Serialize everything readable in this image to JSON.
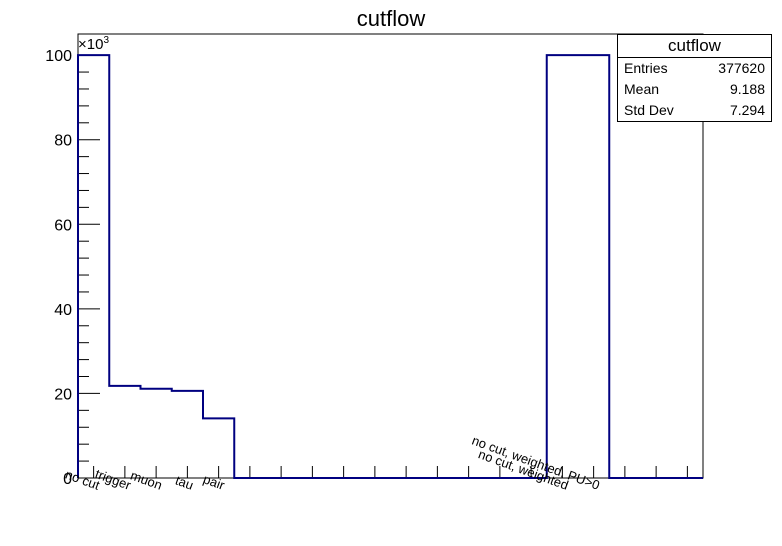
{
  "chart_data": {
    "type": "bar",
    "title": "cutflow",
    "y_exponent_label": "×10",
    "y_exponent_power": "3",
    "categories": [
      "no cut",
      "trigger",
      "muon",
      "tau",
      "pair",
      "",
      "",
      "",
      "",
      "",
      "",
      "",
      "",
      "",
      "",
      "no cut, weighted",
      "no cut, weighted, PU>0",
      "",
      "",
      " "
    ],
    "values": [
      100,
      21.8,
      21.1,
      20.6,
      14.1,
      0,
      0,
      0,
      0,
      0,
      0,
      0,
      0,
      0,
      0,
      100,
      100,
      0,
      0,
      0
    ],
    "bin_count": 20,
    "xlim": [
      0,
      20
    ],
    "ylim": [
      0,
      105
    ],
    "yticks": [
      0,
      20,
      40,
      60,
      80,
      100
    ],
    "line_color": "#000080",
    "grid": false,
    "legend": "top-right"
  },
  "stats_box": {
    "title": "cutflow",
    "rows": [
      {
        "label": "Entries",
        "value": "377620"
      },
      {
        "label": "Mean",
        "value": "9.188"
      },
      {
        "label": "Std Dev",
        "value": "7.294"
      }
    ]
  }
}
